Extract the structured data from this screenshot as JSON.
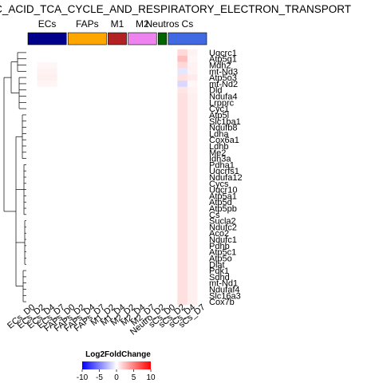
{
  "chart_data": {
    "type": "heatmap",
    "title": "TRIC_ACID_TCA_CYCLE_AND_RESPIRATORY_ELECTRON_TRANSPORT",
    "groups": [
      {
        "label": "ECs",
        "color": "#00008B",
        "columns": [
          "ECs_D0",
          "ECs_D2",
          "ECs_D4",
          "ECs_D7"
        ]
      },
      {
        "label": "FAPs",
        "color": "#FFA500",
        "columns": [
          "FAPs_D0",
          "FAPs_D2",
          "FAPs_D4",
          "FAPs_D7"
        ]
      },
      {
        "label": "M1",
        "color": "#B22222",
        "columns": [
          "M1_D2",
          "M1_D4"
        ]
      },
      {
        "label": "M2",
        "color": "#EE82EE",
        "columns": [
          "M2_D2",
          "M2_D4",
          "M2_D7"
        ]
      },
      {
        "label": "Neutros",
        "color": "#006400",
        "columns": [
          "Neutro_D2"
        ]
      },
      {
        "label": "Cs",
        "color": "#4169E1",
        "columns": [
          "sCs_D0",
          "sCs_D2",
          "sCs_D4",
          "sCs_D7"
        ]
      }
    ],
    "columns": [
      "ECs_D0",
      "ECs_D2",
      "ECs_D4",
      "ECs_D7",
      "FAPs_D0",
      "FAPs_D2",
      "FAPs_D4",
      "FAPs_D7",
      "M1_D2",
      "M1_D4",
      "M2_D2",
      "M2_D4",
      "M2_D7",
      "Neutro_D2",
      "sCs_D0",
      "sCs_D2",
      "sCs_D4",
      "sCs_D7"
    ],
    "rows": [
      "Uqcrc1",
      "Atp5g1",
      "Mdh2",
      "mt-Nd3",
      "Atp5o3",
      "mt-Nd2",
      "Dld",
      "Ndufa4",
      "Lrpprc",
      "Cyc1",
      "Atp5l",
      "Slc1ba1",
      "Ndufb8",
      "Ldha",
      "Cox6a1",
      "Ldhb",
      "Me2",
      "Idh3a",
      "Pdha1",
      "Uqcrfs1",
      "Ndufa12",
      "Cycs",
      "Uqcr10",
      "Atp5a1",
      "Atp5d",
      "Atp5pb",
      "Cs",
      "Sucla2",
      "Ndufc2",
      "Aco2",
      "Ndufc1",
      "Pdhb",
      "Atp5c1",
      "Atp5o",
      "Dlat",
      "Pdk1",
      "Sdhd",
      "mt-Nd1",
      "Ndufaf4",
      "Slc16a3",
      "Cox7b"
    ],
    "values": [
      [
        0,
        0,
        0,
        0,
        0,
        0,
        0,
        0,
        0,
        0,
        0,
        0,
        0,
        0,
        0,
        1.5,
        0.5,
        0
      ],
      [
        0,
        0,
        0,
        0,
        0,
        0,
        0,
        0,
        0,
        0,
        0,
        0,
        0,
        0,
        0,
        2.5,
        0.3,
        0
      ],
      [
        0,
        0.3,
        0.3,
        0,
        0,
        0,
        0,
        0,
        0,
        0,
        0,
        0,
        0,
        0,
        0,
        1.5,
        0.5,
        0
      ],
      [
        0,
        0.5,
        0.5,
        0,
        0,
        0,
        0,
        0,
        0,
        0,
        0,
        0,
        0,
        0,
        0,
        -1,
        0.5,
        0
      ],
      [
        0,
        0.6,
        0.6,
        0,
        0,
        0,
        0,
        0,
        0,
        0,
        0,
        0,
        0,
        0,
        0,
        1.2,
        0.8,
        0
      ],
      [
        0,
        0.4,
        0.4,
        0,
        0,
        0,
        0,
        0,
        0,
        0,
        0,
        0,
        0,
        0,
        0,
        -1.5,
        0.3,
        0
      ],
      [
        0,
        0,
        0,
        0,
        0,
        0,
        0,
        0,
        0,
        0,
        0,
        0,
        0,
        0,
        0,
        1,
        0.5,
        0
      ],
      [
        0,
        0,
        0,
        0,
        0,
        0,
        0,
        0,
        0,
        0,
        0,
        0,
        0,
        0,
        0,
        1.2,
        0.6,
        0
      ],
      [
        0,
        0,
        0,
        0,
        0,
        0,
        0,
        0,
        0,
        0,
        0,
        0,
        0,
        0,
        0,
        1.2,
        0.6,
        0
      ],
      [
        0,
        0,
        0,
        0,
        0,
        0,
        0,
        0,
        0,
        0,
        0,
        0,
        0,
        0,
        0,
        1.2,
        0.6,
        0
      ],
      [
        0,
        0,
        0,
        0,
        0,
        0,
        0,
        0,
        0,
        0,
        0,
        0,
        0,
        0,
        0,
        1.2,
        0.6,
        0
      ],
      [
        0,
        0,
        0,
        0,
        0,
        0,
        0,
        0,
        0,
        0,
        0,
        0,
        0,
        0,
        0,
        1.2,
        0.6,
        0
      ],
      [
        0,
        0,
        0,
        0,
        0,
        0,
        0,
        0,
        0,
        0,
        0,
        0,
        0,
        0,
        0,
        1.2,
        0.6,
        0
      ],
      [
        0,
        0,
        0,
        0,
        0,
        0,
        0,
        0,
        0,
        0,
        0,
        0,
        0,
        0,
        0,
        1.2,
        0.6,
        0
      ],
      [
        0,
        0,
        0,
        0,
        0,
        0,
        0,
        0,
        0,
        0,
        0,
        0,
        0,
        0,
        0,
        1.2,
        0.6,
        0
      ],
      [
        0,
        0,
        0,
        0,
        0,
        0,
        0,
        0,
        0,
        0,
        0,
        0,
        0,
        0,
        0,
        1.2,
        0.6,
        0
      ],
      [
        0,
        0,
        0,
        0,
        0,
        0,
        0,
        0,
        0,
        0,
        0,
        0,
        0,
        0,
        0,
        1.2,
        0.6,
        0
      ],
      [
        0,
        0,
        0,
        0,
        0,
        0,
        0,
        0,
        0,
        0,
        0,
        0,
        0,
        0,
        0,
        1.2,
        0.6,
        0
      ],
      [
        0,
        0,
        0,
        0,
        0,
        0,
        0,
        0,
        0,
        0,
        0,
        0,
        0,
        0,
        0,
        1.2,
        0.6,
        0
      ],
      [
        0,
        0,
        0,
        0,
        0,
        0,
        0,
        0,
        0,
        0,
        0,
        0,
        0,
        0,
        0,
        1.2,
        0.6,
        0
      ],
      [
        0,
        0,
        0,
        0,
        0,
        0,
        0,
        0,
        0,
        0,
        0,
        0,
        0,
        0,
        0,
        1.2,
        0.6,
        0
      ],
      [
        0,
        0,
        0,
        0,
        0,
        0,
        0,
        0,
        0,
        0,
        0,
        0,
        0,
        0,
        0,
        1.2,
        0.6,
        0
      ],
      [
        0,
        0,
        0,
        0,
        0,
        0,
        0,
        0,
        0,
        0,
        0,
        0,
        0,
        0,
        0,
        1.2,
        0.6,
        0
      ],
      [
        0,
        0,
        0,
        0,
        0,
        0,
        0,
        0,
        0,
        0,
        0,
        0,
        0,
        0,
        0,
        1.2,
        0.6,
        0
      ],
      [
        0,
        0,
        0,
        0,
        0,
        0,
        0,
        0,
        0,
        0,
        0,
        0,
        0,
        0,
        0,
        1.2,
        0.6,
        0
      ],
      [
        0,
        0,
        0,
        0,
        0,
        0,
        0,
        0,
        0,
        0,
        0,
        0,
        0,
        0,
        0,
        1.2,
        0.6,
        0
      ],
      [
        0,
        0,
        0,
        0,
        0,
        0,
        0,
        0,
        0,
        0,
        0,
        0,
        0,
        0,
        0,
        1.2,
        0.6,
        0
      ],
      [
        0,
        0,
        0,
        0,
        0,
        0,
        0,
        0,
        0,
        0,
        0,
        0,
        0,
        0,
        0,
        1.2,
        0.6,
        0
      ],
      [
        0,
        0,
        0,
        0,
        0,
        0,
        0,
        0,
        0,
        0,
        0,
        0,
        0,
        0,
        0,
        1.2,
        0.6,
        0
      ],
      [
        0,
        0,
        0,
        0,
        0,
        0,
        0,
        0,
        0,
        0,
        0,
        0,
        0,
        0,
        0,
        1.2,
        0.6,
        0
      ],
      [
        0,
        0,
        0,
        0,
        0,
        0,
        0,
        0,
        0,
        0,
        0,
        0,
        0,
        0,
        0,
        1.2,
        0.6,
        0
      ],
      [
        0,
        0,
        0,
        0,
        0,
        0,
        0,
        0,
        0,
        0,
        0,
        0,
        0,
        0,
        0,
        1.2,
        0.6,
        0
      ],
      [
        0,
        0,
        0,
        0,
        0,
        0,
        0,
        0,
        0,
        0,
        0,
        0,
        0,
        0,
        0,
        1.2,
        0.6,
        0
      ],
      [
        0,
        0,
        0,
        0,
        0,
        0,
        0,
        0,
        0,
        0,
        0,
        0,
        0,
        0,
        0,
        1.2,
        0.6,
        0
      ],
      [
        0,
        0,
        0,
        0,
        0,
        0,
        0,
        0,
        0,
        0,
        0,
        0,
        0,
        0,
        0,
        1.2,
        0.6,
        0
      ],
      [
        0,
        0,
        0,
        0,
        0,
        0,
        0,
        0,
        0,
        0,
        0,
        0,
        0,
        0,
        0,
        1.2,
        0.6,
        0
      ],
      [
        0,
        0,
        0,
        0,
        0,
        0,
        0,
        0,
        0,
        0,
        0,
        0,
        0,
        0,
        0,
        1.2,
        0.6,
        0
      ],
      [
        0,
        0,
        0,
        0,
        0,
        0,
        0,
        0,
        0,
        0,
        0,
        0,
        0,
        0,
        0,
        1.2,
        0.6,
        0
      ],
      [
        0,
        0,
        0,
        0,
        0,
        0,
        0,
        0,
        0,
        0,
        0,
        0,
        0,
        0,
        0,
        1.2,
        0.6,
        0
      ],
      [
        0,
        0,
        0,
        0,
        0,
        0,
        0,
        0,
        0,
        0,
        0,
        0,
        0,
        0,
        0,
        1.2,
        0.6,
        0
      ],
      [
        0,
        0,
        0,
        0,
        0,
        0,
        0,
        0,
        0,
        0,
        0,
        0,
        0,
        0,
        0,
        1.2,
        0.6,
        0
      ]
    ],
    "legend": {
      "title": "Log2FoldChange",
      "ticks": [
        -10,
        -5,
        0,
        5,
        10
      ],
      "range": [
        -10,
        10
      ],
      "colors": {
        "low": "#0000FF",
        "mid": "#FFFFFF",
        "high": "#FF0000"
      },
      "placement": "bottom"
    },
    "row_dendrogram": true,
    "grid": false
  }
}
